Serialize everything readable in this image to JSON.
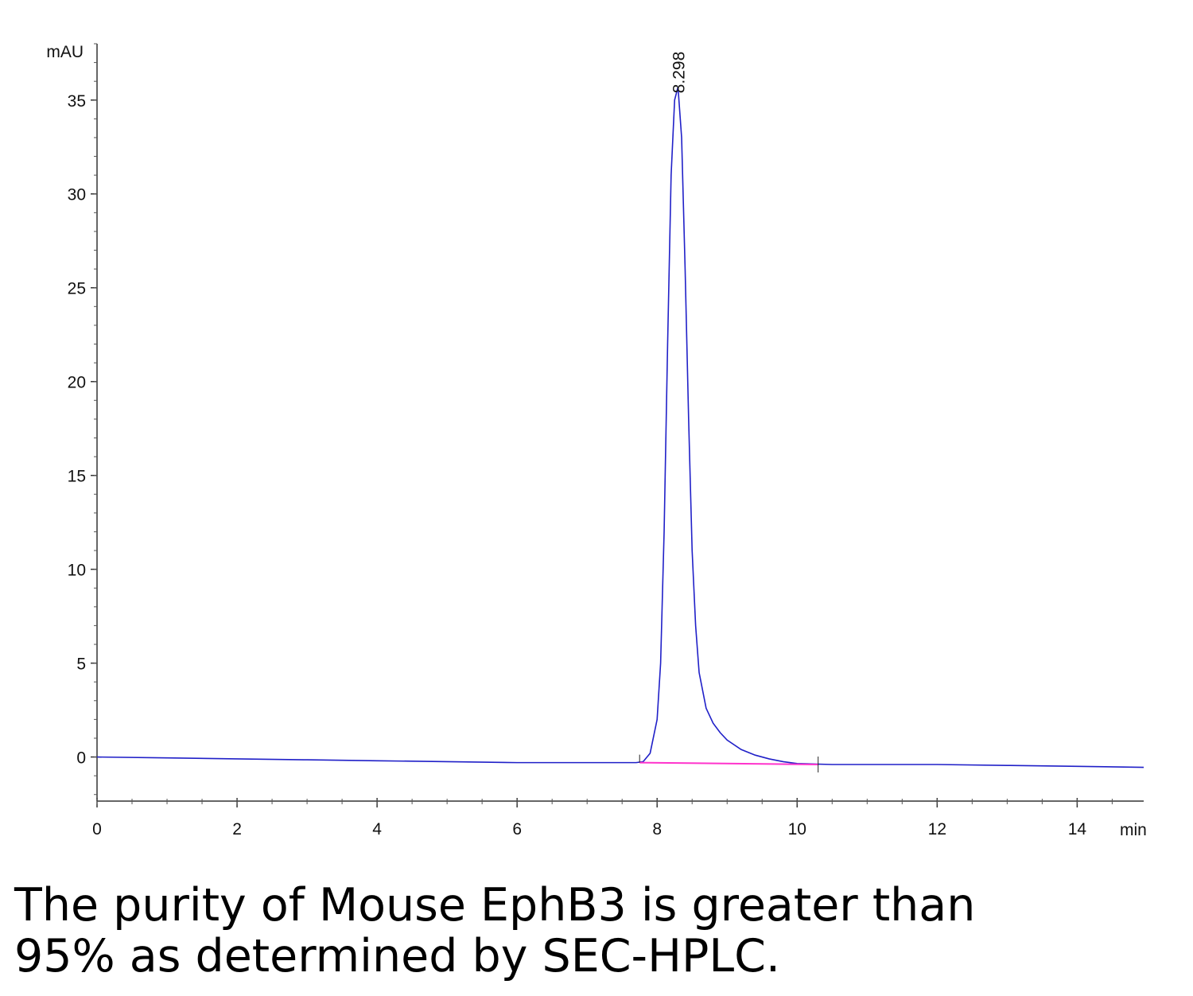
{
  "chart_data": {
    "type": "line",
    "y_label": "mAU",
    "x_label": "min",
    "x": [
      0,
      1,
      2,
      3,
      4,
      5,
      6,
      7,
      7.7,
      7.8,
      7.9,
      8.0,
      8.05,
      8.1,
      8.15,
      8.2,
      8.25,
      8.298,
      8.35,
      8.4,
      8.45,
      8.5,
      8.55,
      8.6,
      8.7,
      8.8,
      8.9,
      9.0,
      9.2,
      9.4,
      9.6,
      9.8,
      10,
      10.5,
      11,
      12,
      13,
      14,
      14.95
    ],
    "series": [
      {
        "color": "#2020c8",
        "values": [
          0,
          -0.05,
          -0.1,
          -0.15,
          -0.2,
          -0.25,
          -0.3,
          -0.3,
          -0.3,
          -0.25,
          0.2,
          2,
          5,
          12,
          22,
          31,
          35,
          35.7,
          33,
          26,
          18,
          11,
          7,
          4.5,
          2.6,
          1.8,
          1.3,
          0.9,
          0.4,
          0.1,
          -0.1,
          -0.25,
          -0.35,
          -0.4,
          -0.4,
          -0.4,
          -0.45,
          -0.5,
          -0.55
        ]
      }
    ],
    "baseline": {
      "x": [
        7.75,
        10.3
      ],
      "values": [
        -0.3,
        -0.4
      ],
      "color": "#ff33cc"
    },
    "annotations": [
      {
        "label": "8.298",
        "x": 8.298,
        "y": 35.7
      }
    ],
    "xlim": [
      0,
      14.95
    ],
    "ylim": [
      -2.35,
      38
    ],
    "xticks": [
      0,
      2,
      4,
      6,
      8,
      10,
      12,
      14
    ],
    "yticks": [
      0,
      5,
      10,
      15,
      20,
      25,
      30,
      35
    ],
    "grid": false
  },
  "caption_lines": [
    "The purity of Mouse EphB3 is greater than",
    "95% as determined by SEC-HPLC."
  ]
}
